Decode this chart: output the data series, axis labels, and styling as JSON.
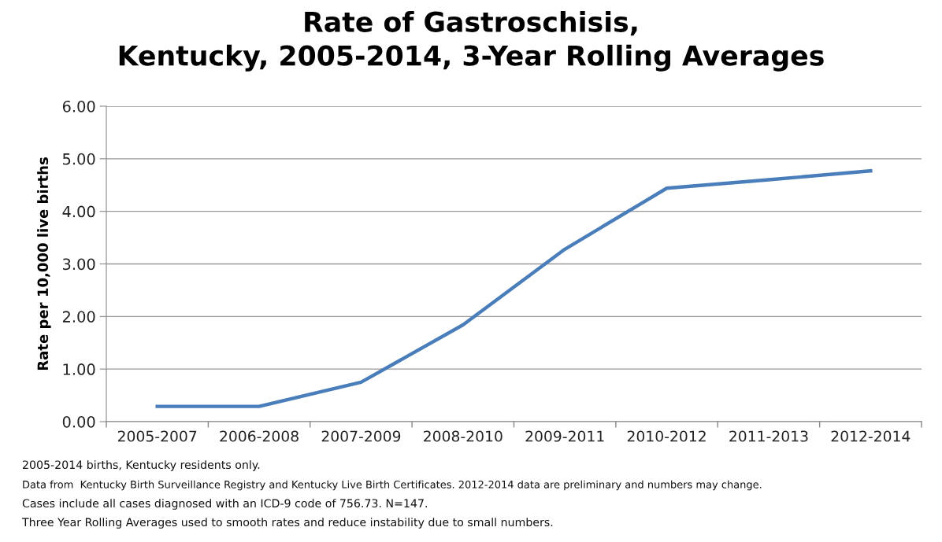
{
  "chart_data": {
    "type": "line",
    "title": "Rate of Gastroschisis,\nKentucky, 2005-2014, 3-Year Rolling Averages",
    "ylabel": "Rate per 10,000 live births",
    "categories": [
      "2005-2007",
      "2006-2008",
      "2007-2009",
      "2008-2010",
      "2009-2011",
      "2010-2012",
      "2011-2013",
      "2012-2014"
    ],
    "series": [
      {
        "color": "#4a7ebb",
        "values": [
          0.29,
          0.29,
          0.75,
          1.84,
          3.28,
          4.44,
          4.6,
          4.77
        ]
      }
    ],
    "ylim": [
      0,
      6
    ],
    "yticks": [
      {
        "value": 0,
        "label": "0.00"
      },
      {
        "value": 1,
        "label": "1.00"
      },
      {
        "value": 2,
        "label": "2.00"
      },
      {
        "value": 3,
        "label": "3.00"
      },
      {
        "value": 4,
        "label": "4.00"
      },
      {
        "value": 5,
        "label": "5.00"
      },
      {
        "value": 6,
        "label": "6.00"
      }
    ],
    "grid": "y",
    "legend": false,
    "marker": "none",
    "line_style": "solid",
    "annotations": [
      "2005-2014 births, Kentucky residents only.",
      "Data from  Kentucky Birth Surveillance Registry and Kentucky Live Birth Certificates. 2012-2014 data are preliminary and numbers may change.",
      "Cases include all cases diagnosed with an ICD-9 code of 756.73. N=147.",
      "Three Year Rolling Averages used to smooth rates and reduce instability due to small numbers."
    ]
  }
}
